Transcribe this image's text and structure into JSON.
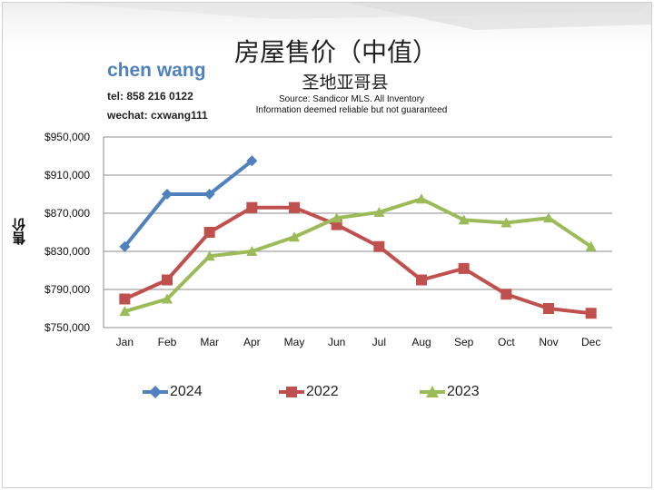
{
  "title": "房屋售价（中值）",
  "subtitle": "圣地亚哥县",
  "source": [
    "Source: Sandicor MLS. All Inventory",
    "Information deemed reliable but not guaranteed"
  ],
  "author": {
    "name": "chen wang",
    "tel": "tel: 858 216 0122",
    "wechat": "wechat: cxwang111"
  },
  "chart_data": {
    "type": "line",
    "title": "房屋售价（中值）",
    "ylabel": "售价",
    "xlabel": "",
    "categories": [
      "Jan",
      "Feb",
      "Mar",
      "Apr",
      "May",
      "Jun",
      "Jul",
      "Aug",
      "Sep",
      "Oct",
      "Nov",
      "Dec"
    ],
    "ylim": [
      750000,
      950000
    ],
    "yticks": [
      750000,
      790000,
      830000,
      870000,
      910000,
      950000
    ],
    "ytick_labels": [
      "$750,000",
      "$790,000",
      "$830,000",
      "$870,000",
      "$910,000",
      "$950,000"
    ],
    "grid": true,
    "legend_position": "bottom",
    "series": [
      {
        "name": "2024",
        "color": "#4f81bd",
        "marker": "diamond",
        "values": [
          835000,
          890000,
          890000,
          925000,
          null,
          null,
          null,
          null,
          null,
          null,
          null,
          null
        ]
      },
      {
        "name": "2022",
        "color": "#c0504d",
        "marker": "square",
        "values": [
          780000,
          800000,
          850000,
          876000,
          876000,
          858000,
          835000,
          800000,
          812000,
          785000,
          770000,
          765000
        ]
      },
      {
        "name": "2023",
        "color": "#9bbb59",
        "marker": "triangle",
        "values": [
          767000,
          780000,
          825000,
          830000,
          845000,
          865000,
          871000,
          885000,
          863000,
          860000,
          865000,
          835000
        ]
      }
    ]
  }
}
